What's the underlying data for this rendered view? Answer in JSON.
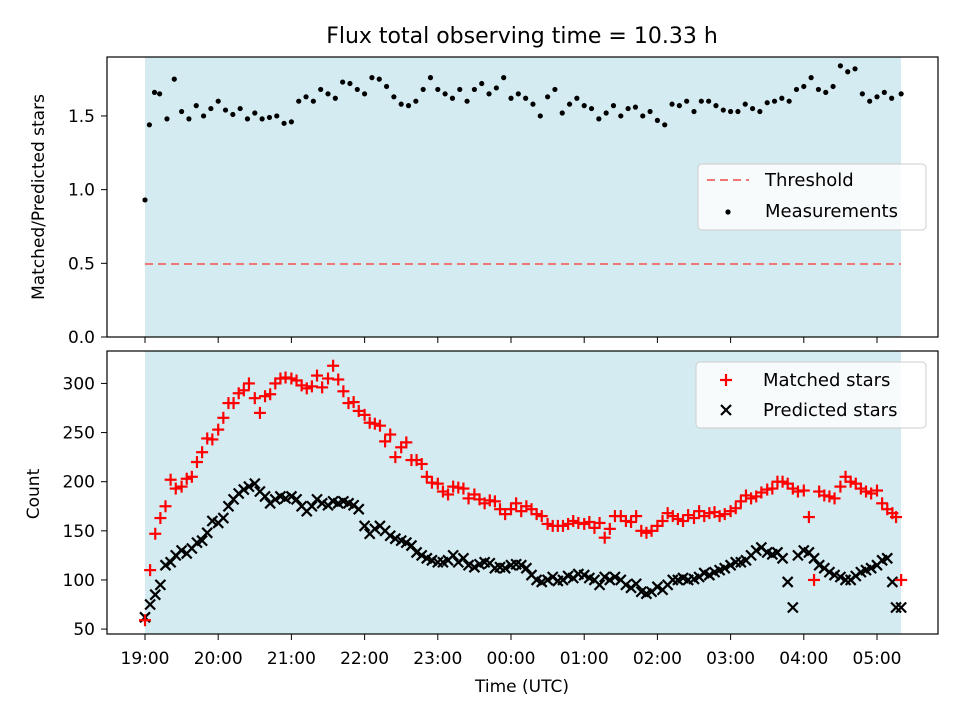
{
  "chart_data": [
    {
      "type": "scatter",
      "title": "Flux total observing time = 10.33 h",
      "ylabel": "Matched/Predicted stars",
      "xlabel": "",
      "ylim": [
        0,
        1.9
      ],
      "yticks": [
        "0.0",
        "0.5",
        "1.0",
        "1.5"
      ],
      "ytick_values": [
        0,
        0.5,
        1.0,
        1.5
      ],
      "shaded_span_hours": [
        0,
        10.33
      ],
      "legend_position": "center-right",
      "threshold": {
        "name": "Threshold",
        "value": 0.5,
        "color": "#f07676"
      },
      "series": [
        {
          "name": "Measurements",
          "marker": "dot",
          "color": "#000000",
          "x": [
            0.0,
            0.06,
            0.13,
            0.2,
            0.3,
            0.4,
            0.5,
            0.6,
            0.7,
            0.8,
            0.9,
            1.0,
            1.1,
            1.2,
            1.3,
            1.4,
            1.5,
            1.6,
            1.7,
            1.8,
            1.9,
            2.0,
            2.1,
            2.2,
            2.3,
            2.4,
            2.5,
            2.6,
            2.7,
            2.8,
            2.9,
            3.0,
            3.1,
            3.2,
            3.3,
            3.4,
            3.5,
            3.6,
            3.7,
            3.8,
            3.9,
            4.0,
            4.1,
            4.2,
            4.3,
            4.4,
            4.5,
            4.6,
            4.7,
            4.8,
            4.9,
            5.0,
            5.1,
            5.2,
            5.3,
            5.4,
            5.5,
            5.6,
            5.7,
            5.8,
            5.9,
            6.0,
            6.1,
            6.2,
            6.3,
            6.4,
            6.5,
            6.6,
            6.7,
            6.8,
            6.9,
            7.0,
            7.1,
            7.2,
            7.3,
            7.4,
            7.5,
            7.6,
            7.7,
            7.8,
            7.9,
            8.0,
            8.1,
            8.2,
            8.3,
            8.4,
            8.5,
            8.6,
            8.7,
            8.8,
            8.9,
            9.0,
            9.1,
            9.2,
            9.3,
            9.4,
            9.5,
            9.6,
            9.7,
            9.8,
            9.9,
            10.0,
            10.1,
            10.2,
            10.33
          ],
          "y": [
            0.93,
            1.44,
            1.66,
            1.65,
            1.48,
            1.75,
            1.53,
            1.48,
            1.57,
            1.5,
            1.55,
            1.6,
            1.54,
            1.51,
            1.55,
            1.48,
            1.52,
            1.48,
            1.49,
            1.5,
            1.45,
            1.46,
            1.6,
            1.63,
            1.6,
            1.68,
            1.65,
            1.62,
            1.73,
            1.72,
            1.68,
            1.65,
            1.76,
            1.75,
            1.7,
            1.63,
            1.58,
            1.57,
            1.6,
            1.68,
            1.76,
            1.68,
            1.65,
            1.62,
            1.68,
            1.6,
            1.68,
            1.72,
            1.65,
            1.69,
            1.76,
            1.62,
            1.65,
            1.62,
            1.58,
            1.5,
            1.63,
            1.68,
            1.52,
            1.58,
            1.62,
            1.57,
            1.55,
            1.48,
            1.52,
            1.57,
            1.5,
            1.55,
            1.56,
            1.5,
            1.53,
            1.47,
            1.44,
            1.58,
            1.57,
            1.6,
            1.53,
            1.6,
            1.6,
            1.57,
            1.54,
            1.53,
            1.53,
            1.58,
            1.55,
            1.53,
            1.59,
            1.6,
            1.62,
            1.6,
            1.68,
            1.7,
            1.76,
            1.68,
            1.66,
            1.7,
            1.84,
            1.8,
            1.82,
            1.65,
            1.6,
            1.63,
            1.66,
            1.62,
            1.65
          ]
        }
      ]
    },
    {
      "type": "scatter",
      "title": "",
      "ylabel": "Count",
      "xlabel": "Time (UTC)",
      "ylim": [
        45,
        333
      ],
      "yticks": [
        "50",
        "100",
        "150",
        "200",
        "250",
        "300"
      ],
      "ytick_values": [
        50,
        100,
        150,
        200,
        250,
        300
      ],
      "xtick_labels": [
        "19:00",
        "20:00",
        "21:00",
        "22:00",
        "23:00",
        "00:00",
        "01:00",
        "02:00",
        "03:00",
        "04:00",
        "05:00"
      ],
      "xtick_hours": [
        0,
        1,
        2,
        3,
        4,
        5,
        6,
        7,
        8,
        9,
        10
      ],
      "xlim_hours": [
        -0.55,
        10.9
      ],
      "shaded_span_hours": [
        0,
        10.33
      ],
      "legend_position": "top-right",
      "series": [
        {
          "name": "Matched stars",
          "marker": "plus",
          "color": "#ff0000",
          "x": [
            0.0,
            0.07,
            0.14,
            0.21,
            0.28,
            0.35,
            0.42,
            0.5,
            0.57,
            0.64,
            0.71,
            0.78,
            0.85,
            0.92,
            1.0,
            1.07,
            1.14,
            1.21,
            1.28,
            1.35,
            1.42,
            1.5,
            1.57,
            1.64,
            1.71,
            1.78,
            1.85,
            1.92,
            2.0,
            2.07,
            2.14,
            2.21,
            2.28,
            2.35,
            2.42,
            2.5,
            2.57,
            2.64,
            2.71,
            2.78,
            2.85,
            2.92,
            3.0,
            3.07,
            3.14,
            3.21,
            3.28,
            3.35,
            3.42,
            3.5,
            3.57,
            3.64,
            3.71,
            3.78,
            3.85,
            3.92,
            4.0,
            4.07,
            4.14,
            4.21,
            4.28,
            4.35,
            4.42,
            4.5,
            4.57,
            4.64,
            4.71,
            4.78,
            4.85,
            4.92,
            5.0,
            5.07,
            5.14,
            5.21,
            5.28,
            5.35,
            5.42,
            5.5,
            5.57,
            5.64,
            5.71,
            5.78,
            5.85,
            5.92,
            6.0,
            6.07,
            6.14,
            6.21,
            6.28,
            6.35,
            6.42,
            6.5,
            6.57,
            6.64,
            6.71,
            6.78,
            6.85,
            6.92,
            7.0,
            7.07,
            7.14,
            7.21,
            7.28,
            7.35,
            7.42,
            7.5,
            7.57,
            7.64,
            7.71,
            7.78,
            7.85,
            7.92,
            8.0,
            8.07,
            8.14,
            8.21,
            8.28,
            8.35,
            8.42,
            8.5,
            8.57,
            8.64,
            8.71,
            8.78,
            8.85,
            8.92,
            9.0,
            9.07,
            9.14,
            9.21,
            9.28,
            9.35,
            9.42,
            9.5,
            9.57,
            9.64,
            9.71,
            9.78,
            9.85,
            9.92,
            10.0,
            10.07,
            10.14,
            10.21,
            10.26,
            10.33
          ],
          "y": [
            59,
            110,
            147,
            163,
            175,
            202,
            193,
            195,
            203,
            205,
            220,
            230,
            244,
            243,
            253,
            265,
            280,
            280,
            290,
            293,
            300,
            285,
            270,
            287,
            289,
            300,
            305,
            306,
            305,
            303,
            298,
            295,
            297,
            308,
            296,
            305,
            318,
            304,
            292,
            280,
            281,
            272,
            268,
            260,
            259,
            257,
            241,
            248,
            225,
            235,
            240,
            222,
            222,
            218,
            205,
            199,
            198,
            190,
            187,
            195,
            194,
            193,
            183,
            187,
            182,
            178,
            181,
            180,
            172,
            167,
            172,
            178,
            170,
            175,
            172,
            167,
            165,
            157,
            155,
            155,
            155,
            157,
            160,
            158,
            157,
            159,
            153,
            158,
            143,
            152,
            165,
            165,
            160,
            159,
            165,
            150,
            148,
            150,
            155,
            160,
            168,
            165,
            162,
            160,
            166,
            163,
            170,
            165,
            168,
            169,
            165,
            167,
            170,
            173,
            180,
            186,
            183,
            185,
            189,
            192,
            193,
            200,
            200,
            198,
            193,
            190,
            191,
            164,
            100,
            190,
            186,
            185,
            183,
            195,
            205,
            200,
            198,
            193,
            190,
            188,
            191,
            178,
            172,
            168,
            164,
            100
          ],
          "note": ""
        },
        {
          "name": "Predicted stars",
          "marker": "x",
          "color": "#000000",
          "x": [
            0.0,
            0.07,
            0.14,
            0.21,
            0.28,
            0.35,
            0.42,
            0.5,
            0.57,
            0.64,
            0.71,
            0.78,
            0.85,
            0.92,
            1.0,
            1.07,
            1.14,
            1.21,
            1.28,
            1.35,
            1.42,
            1.5,
            1.57,
            1.64,
            1.71,
            1.78,
            1.85,
            1.92,
            2.0,
            2.07,
            2.14,
            2.21,
            2.28,
            2.35,
            2.42,
            2.5,
            2.57,
            2.64,
            2.71,
            2.78,
            2.85,
            2.92,
            3.0,
            3.07,
            3.14,
            3.21,
            3.28,
            3.35,
            3.42,
            3.5,
            3.57,
            3.64,
            3.71,
            3.78,
            3.85,
            3.92,
            4.0,
            4.07,
            4.14,
            4.21,
            4.28,
            4.35,
            4.42,
            4.5,
            4.57,
            4.64,
            4.71,
            4.78,
            4.85,
            4.92,
            5.0,
            5.07,
            5.14,
            5.21,
            5.28,
            5.35,
            5.42,
            5.5,
            5.57,
            5.64,
            5.71,
            5.78,
            5.85,
            5.92,
            6.0,
            6.07,
            6.14,
            6.21,
            6.28,
            6.35,
            6.42,
            6.5,
            6.57,
            6.64,
            6.71,
            6.78,
            6.85,
            6.92,
            7.0,
            7.07,
            7.14,
            7.21,
            7.28,
            7.35,
            7.42,
            7.5,
            7.57,
            7.64,
            7.71,
            7.78,
            7.85,
            7.92,
            8.0,
            8.07,
            8.14,
            8.21,
            8.28,
            8.35,
            8.42,
            8.5,
            8.57,
            8.64,
            8.71,
            8.78,
            8.85,
            8.92,
            9.0,
            9.07,
            9.14,
            9.21,
            9.28,
            9.35,
            9.42,
            9.5,
            9.57,
            9.64,
            9.71,
            9.78,
            9.85,
            9.92,
            10.0,
            10.07,
            10.14,
            10.21,
            10.26,
            10.33
          ],
          "y": [
            62,
            75,
            85,
            95,
            115,
            118,
            125,
            130,
            127,
            132,
            138,
            140,
            148,
            160,
            158,
            163,
            175,
            182,
            188,
            192,
            195,
            198,
            190,
            185,
            178,
            182,
            185,
            183,
            185,
            182,
            175,
            170,
            175,
            182,
            178,
            176,
            180,
            178,
            180,
            178,
            176,
            172,
            155,
            147,
            152,
            155,
            150,
            145,
            142,
            140,
            138,
            135,
            128,
            125,
            122,
            120,
            118,
            118,
            120,
            125,
            118,
            122,
            115,
            113,
            116,
            118,
            117,
            112,
            113,
            112,
            115,
            116,
            115,
            112,
            105,
            100,
            98,
            100,
            103,
            99,
            100,
            104,
            102,
            106,
            105,
            102,
            100,
            95,
            103,
            100,
            103,
            100,
            95,
            92,
            96,
            88,
            86,
            88,
            93,
            90,
            95,
            100,
            100,
            102,
            100,
            101,
            103,
            107,
            105,
            108,
            110,
            112,
            115,
            118,
            118,
            120,
            125,
            130,
            133,
            128,
            126,
            128,
            122,
            98,
            72,
            125,
            130,
            128,
            122,
            115,
            112,
            108,
            105,
            103,
            100,
            100,
            104,
            108,
            110,
            112,
            115,
            120,
            122,
            98,
            72,
            72
          ]
        }
      ]
    }
  ]
}
